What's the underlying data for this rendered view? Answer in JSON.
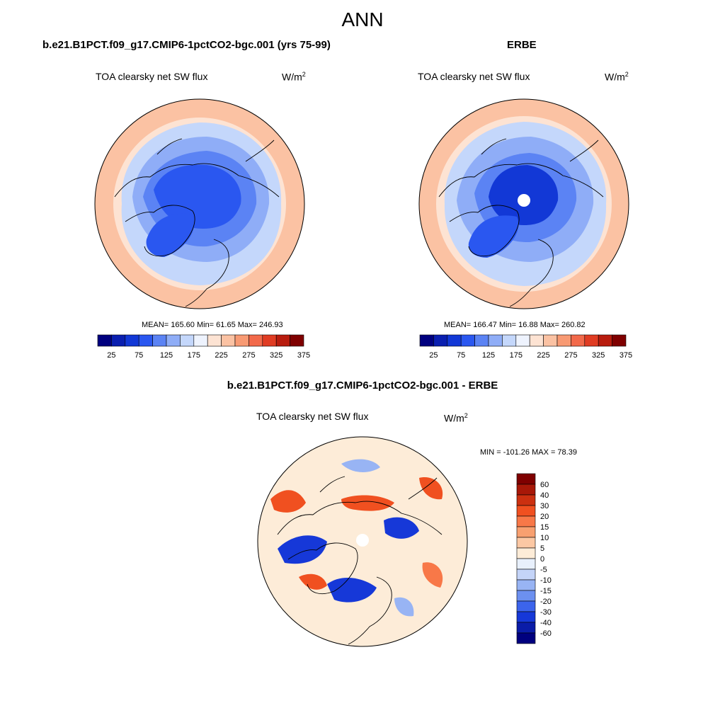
{
  "title": "ANN",
  "units_base": "W/m",
  "units_exp": "2",
  "variable": "TOA clearsky net SW flux",
  "panels": {
    "model": {
      "title": "b.e21.B1PCT.f09_g17.CMIP6-1pctCO2-bgc.001 (yrs 75-99)",
      "stats": "MEAN= 165.60  Min=  61.65  Max= 246.93"
    },
    "obs": {
      "title": "ERBE",
      "stats": "MEAN= 166.47  Min=  16.88  Max= 260.82"
    },
    "diff": {
      "title": "b.e21.B1PCT.f09_g17.CMIP6-1pctCO2-bgc.001 - ERBE",
      "stats": "MIN = -101.26 MAX =  78.39"
    }
  },
  "abs_colorbar": {
    "colors": [
      "#00007f",
      "#0a1fb0",
      "#1238d6",
      "#2a57f0",
      "#5b83f4",
      "#8fadf7",
      "#c4d7fb",
      "#eef3fe",
      "#fde3d3",
      "#fbc2a3",
      "#f89a73",
      "#f2694a",
      "#e03c23",
      "#b81c0e",
      "#7f0000"
    ],
    "labels": [
      "25",
      "75",
      "125",
      "175",
      "225",
      "275",
      "325",
      "375"
    ]
  },
  "diff_colorbar": {
    "colors": [
      "#7f0000",
      "#a81808",
      "#cc3010",
      "#f05020",
      "#f87848",
      "#f8a070",
      "#fcc8a4",
      "#fdecd8",
      "#e8f0fc",
      "#c4d4f8",
      "#98b4f4",
      "#6c90f0",
      "#3c64ec",
      "#1638d8",
      "#0a1ca8",
      "#00007f"
    ],
    "labels": [
      "60",
      "40",
      "30",
      "20",
      "15",
      "10",
      "5",
      "0",
      "-5",
      "-10",
      "-15",
      "-20",
      "-30",
      "-40",
      "-60"
    ]
  },
  "map_colors": {
    "ocean_warm": "#fde3d3",
    "ocean_mid": "#fbc2a3",
    "cool_light": "#c4d7fb",
    "cool_mid": "#8fadf7",
    "cool_strong": "#5b83f4",
    "cool_deep": "#2a57f0",
    "diff_base": "#fdecd8",
    "diff_red": "#f05020",
    "diff_blue": "#1638d8",
    "diff_lightblue": "#98b4f4"
  }
}
